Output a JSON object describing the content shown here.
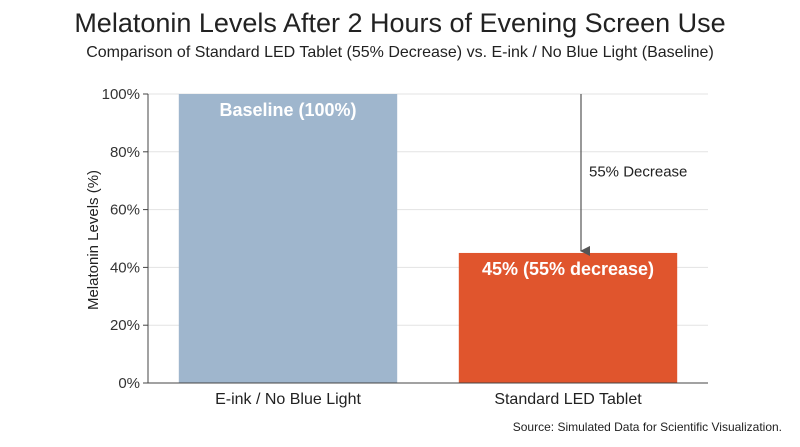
{
  "chart_data": {
    "type": "bar",
    "title": "Melatonin Levels After 2 Hours of Evening Screen Use",
    "subtitle": "Comparison of Standard LED Tablet (55% Decrease) vs. E-ink / No Blue Light (Baseline)",
    "xlabel": "",
    "ylabel": "Melatonin Levels (%)",
    "ylim": [
      0,
      100
    ],
    "yticks": [
      0,
      20,
      40,
      60,
      80,
      100
    ],
    "ytick_labels": [
      "0%",
      "20%",
      "40%",
      "60%",
      "80%",
      "100%"
    ],
    "grid": true,
    "categories": [
      "E-ink / No Blue Light",
      "Standard LED Tablet"
    ],
    "values": [
      100,
      45
    ],
    "colors": [
      "#9fb6cd",
      "#e0552d"
    ],
    "data_labels": [
      "Baseline (100%)",
      "45% (55% decrease)"
    ],
    "annotation": {
      "text": "55% Decrease",
      "from_value": 100,
      "to_value": 45,
      "category_index": 1
    },
    "source": "Source: Simulated Data for Scientific Visualization."
  }
}
